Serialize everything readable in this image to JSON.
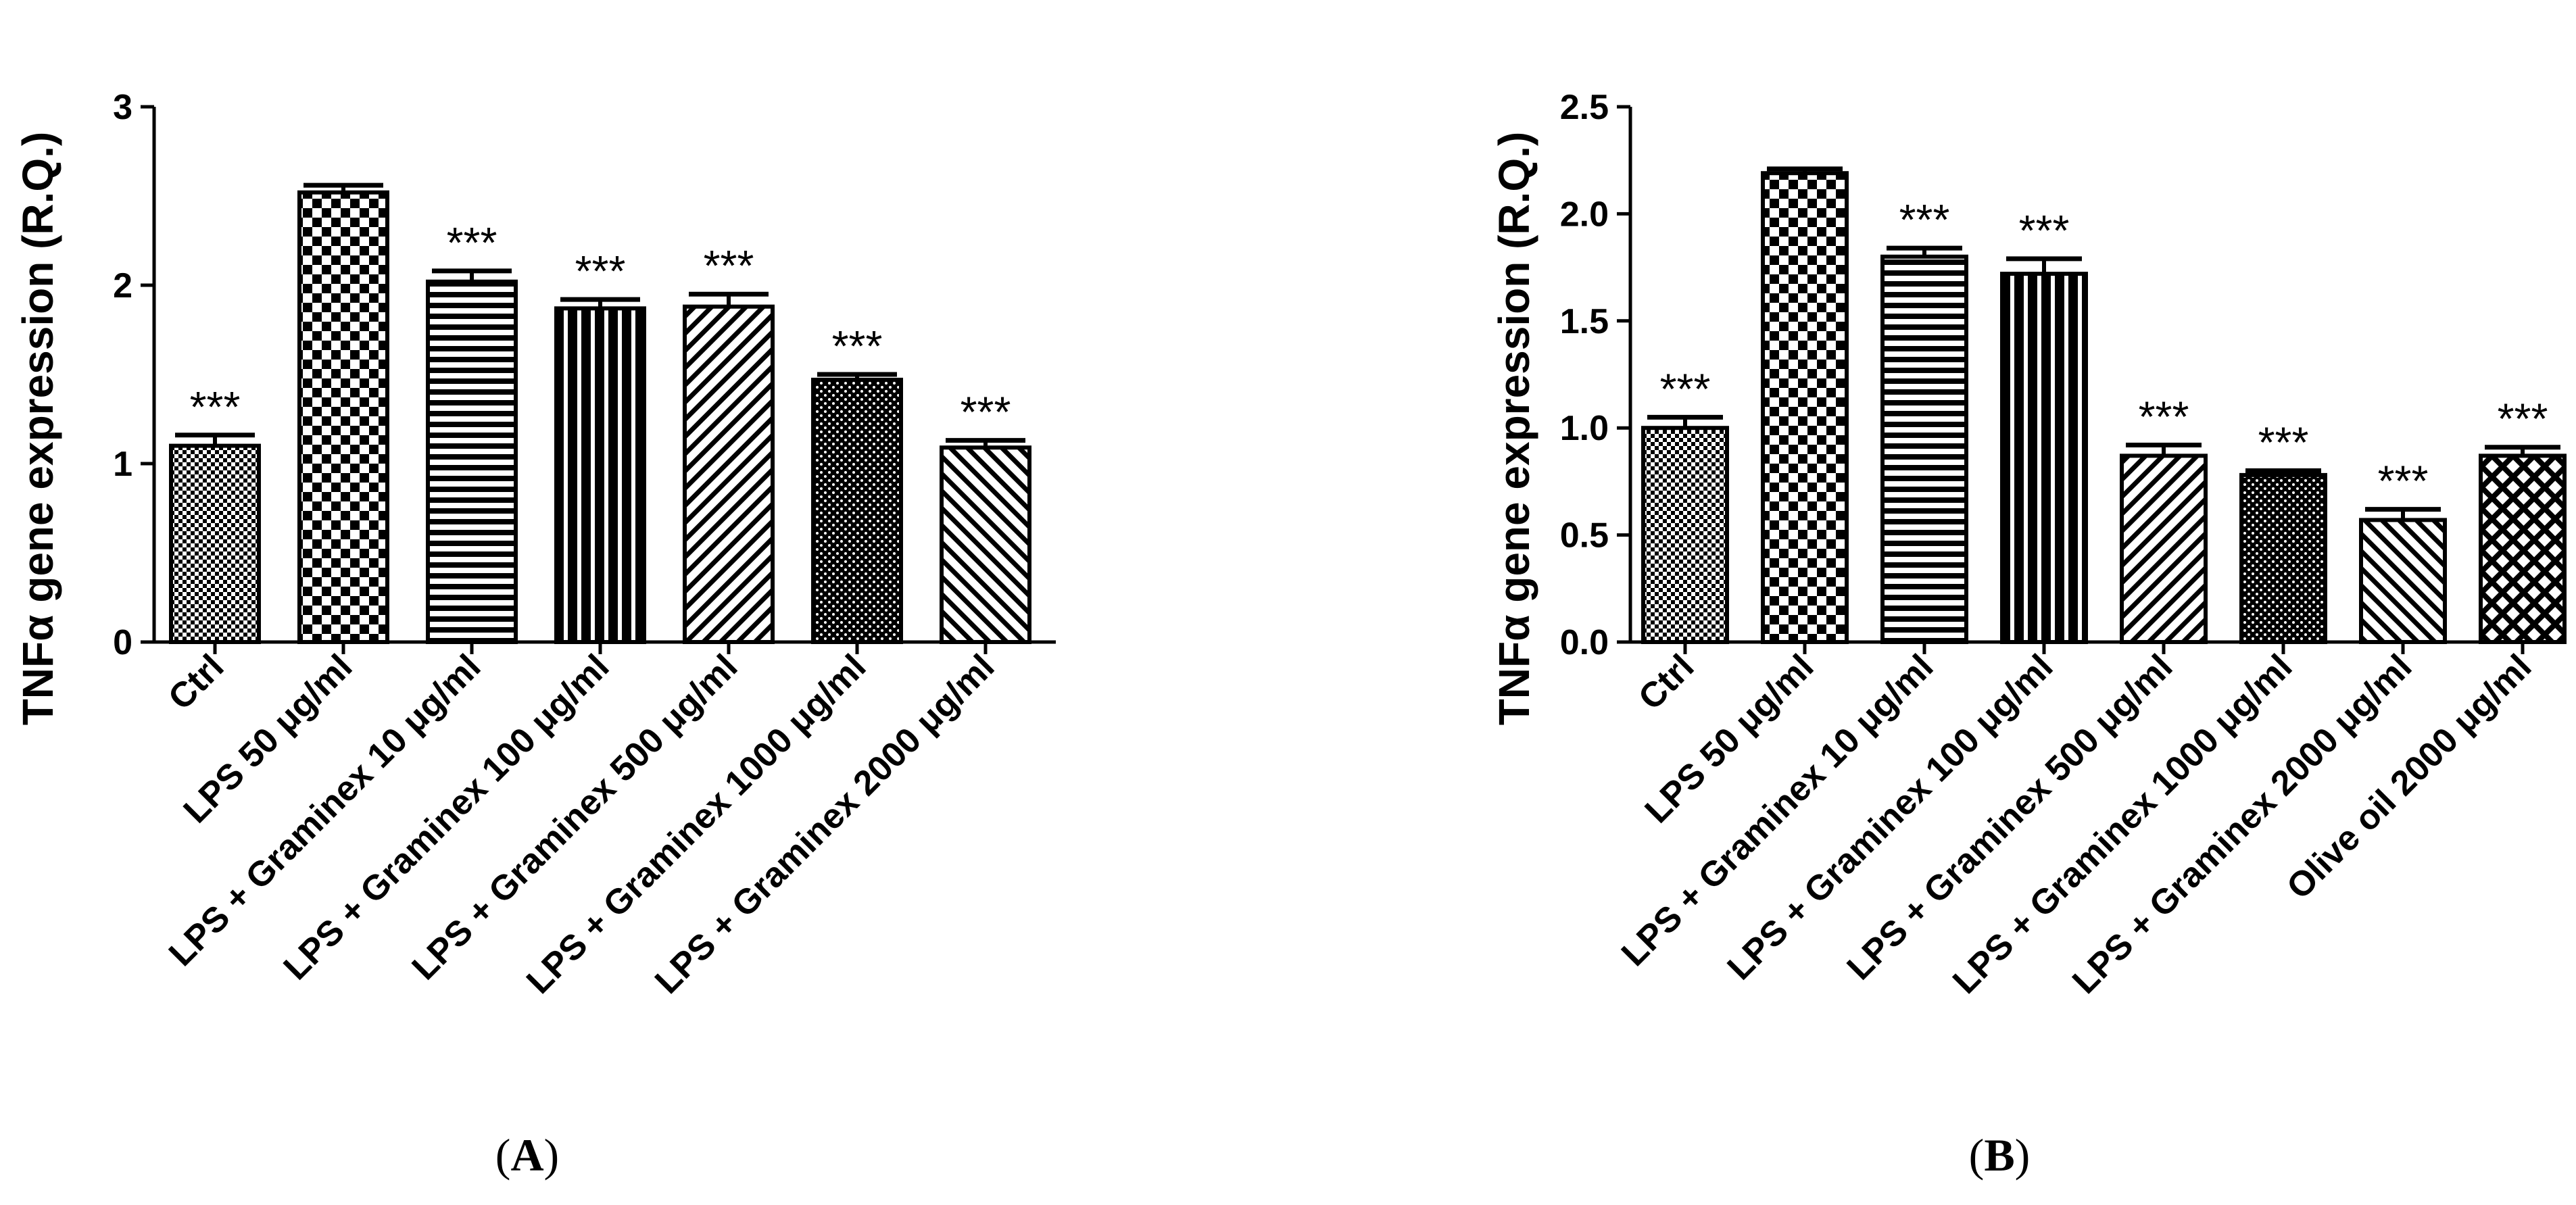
{
  "chart_data": [
    {
      "type": "bar",
      "panel": "A",
      "ylabel": "TNFα gene expression (R.Q.)",
      "ylim": [
        0,
        3
      ],
      "yticks": [
        "0",
        "1",
        "2",
        "3"
      ],
      "categories": [
        "Ctrl",
        "LPS 50 μg/ml",
        "LPS + Graminex 10 μg/ml",
        "LPS + Graminex 100 μg/ml",
        "LPS + Graminex 500 μg/ml",
        "LPS + Graminex 1000 μg/ml",
        "LPS + Graminex 2000 μg/ml"
      ],
      "values": [
        1.1,
        2.52,
        2.02,
        1.87,
        1.88,
        1.47,
        1.09
      ],
      "errors": [
        0.06,
        0.04,
        0.06,
        0.05,
        0.07,
        0.03,
        0.04
      ],
      "significance": [
        "***",
        "",
        "***",
        "***",
        "***",
        "***",
        "***"
      ],
      "patterns": [
        "fine-check",
        "checker",
        "hlines",
        "vlines",
        "diag-right",
        "dots",
        "diag-left"
      ]
    },
    {
      "type": "bar",
      "panel": "B",
      "ylabel": "TNFα gene expression (R.Q.)",
      "ylim": [
        0,
        2.5
      ],
      "yticks": [
        "0.0",
        "0.5",
        "1.0",
        "1.5",
        "2.0",
        "2.5"
      ],
      "categories": [
        "Ctrl",
        "LPS 50 μg/ml",
        "LPS + Graminex 10 μg/ml",
        "LPS + Graminex 100 μg/ml",
        "LPS + Graminex 500 μg/ml",
        "LPS + Graminex 1000 μg/ml",
        "LPS + Graminex 2000 μg/ml",
        "Olive oil  2000 μg/ml"
      ],
      "values": [
        1.0,
        2.19,
        1.8,
        1.72,
        0.87,
        0.78,
        0.57,
        0.87
      ],
      "errors": [
        0.05,
        0.02,
        0.04,
        0.07,
        0.05,
        0.02,
        0.05,
        0.04
      ],
      "significance": [
        "***",
        "",
        "***",
        "***",
        "***",
        "***",
        "***",
        "***"
      ],
      "patterns": [
        "fine-check",
        "checker",
        "hlines",
        "vlines",
        "diag-right",
        "dots",
        "diag-left",
        "crosshatch"
      ]
    }
  ],
  "panel_labels": [
    "A",
    "B"
  ]
}
